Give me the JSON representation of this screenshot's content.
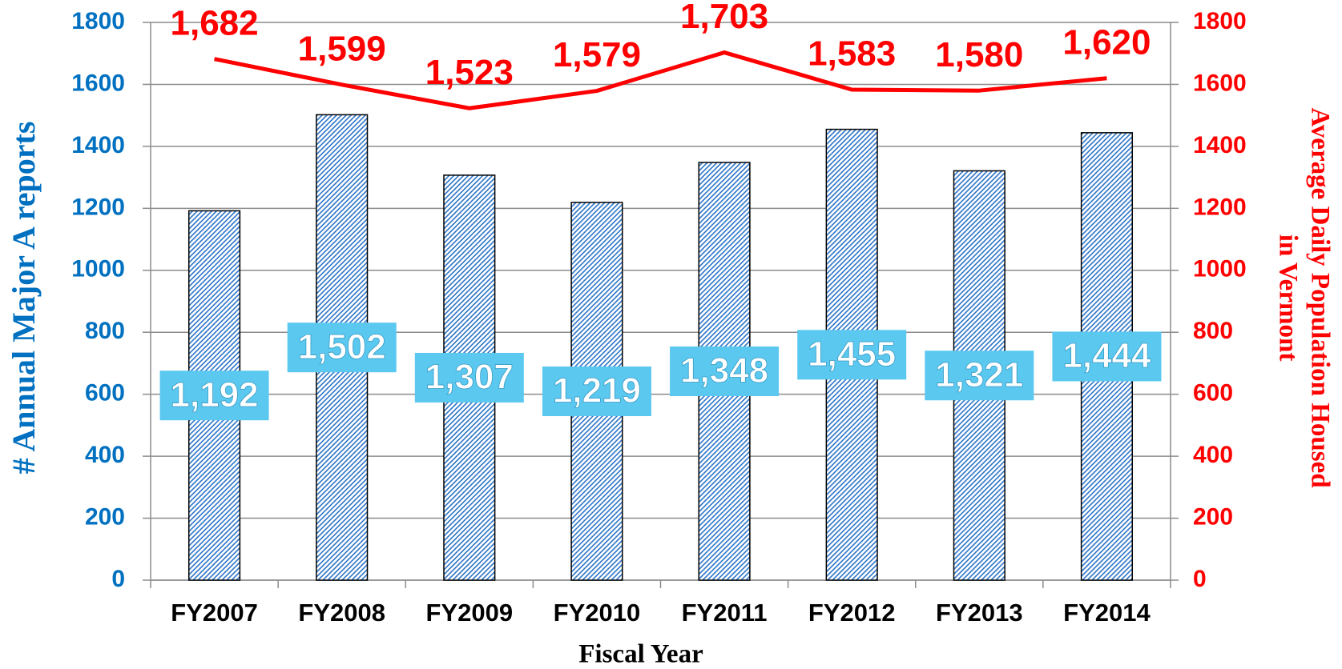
{
  "chart_data": {
    "type": "bar",
    "xlabel": "Fiscal Year",
    "ylabel": "# Annual Major A reports",
    "y2label": [
      "Average Daily Population Housed",
      "in Vermont"
    ],
    "categories": [
      "FY2007",
      "FY2008",
      "FY2009",
      "FY2010",
      "FY2011",
      "FY2012",
      "FY2013",
      "FY2014"
    ],
    "series": [
      {
        "type": "bar",
        "color": "#2e75c8",
        "axis": "y",
        "values": [
          1192,
          1502,
          1307,
          1219,
          1348,
          1455,
          1321,
          1444
        ],
        "value_labels": [
          "1,192",
          "1,502",
          "1,307",
          "1,219",
          "1,348",
          "1,455",
          "1,321",
          "1,444"
        ]
      },
      {
        "type": "line",
        "color": "#ff0000",
        "axis": "y2",
        "values": [
          1682,
          1599,
          1523,
          1579,
          1703,
          1583,
          1580,
          1620
        ],
        "value_labels": [
          "1,682",
          "1,599",
          "1,523",
          "1,579",
          "1,703",
          "1,583",
          "1,580",
          "1,620"
        ]
      }
    ],
    "ylim": [
      0,
      1800
    ],
    "yticks": [
      0,
      200,
      400,
      600,
      800,
      1000,
      1200,
      1400,
      1600,
      1800
    ],
    "y2lim": [
      0,
      1800
    ],
    "y2ticks": [
      0,
      200,
      400,
      600,
      800,
      1000,
      1200,
      1400,
      1600,
      1800
    ],
    "ycolor": "#0070c0",
    "y2color": "#ff0000",
    "grid": true
  }
}
